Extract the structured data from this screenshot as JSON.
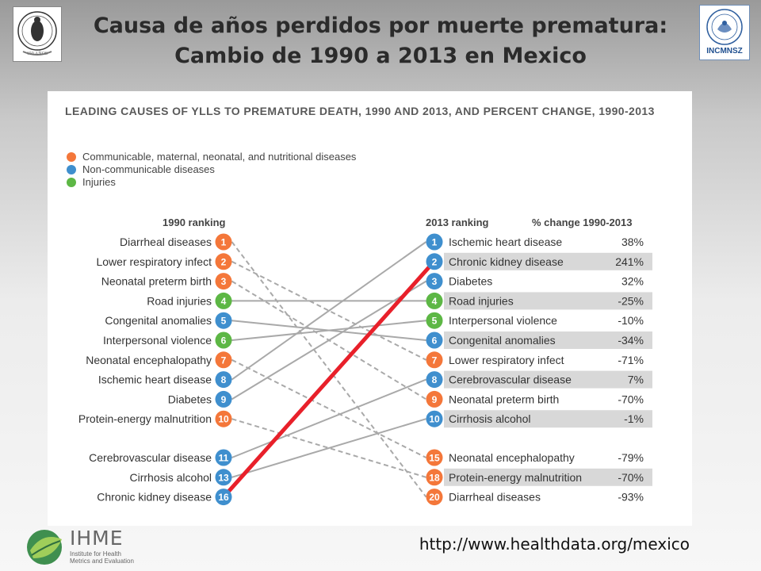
{
  "slide": {
    "title_line1": "Causa de años perdidos por muerte prematura:",
    "title_line2": "Cambio de 1990 a 2013 en Mexico",
    "url": "http://www.healthdata.org/mexico",
    "left_logo_text": "150 AÑOS",
    "right_logo_text": "INCMNSZ",
    "ihme_name": "IHME",
    "ihme_subtitle": "Institute for Health Metrics and Evaluation"
  },
  "chart": {
    "title": "LEADING CAUSES OF YLLS TO PREMATURE DEATH, 1990 AND 2013, AND PERCENT CHANGE, 1990-2013",
    "legend": [
      {
        "label": "Communicable, maternal, neonatal, and nutritional diseases",
        "color": "#f4773a"
      },
      {
        "label": "Non-communicable diseases",
        "color": "#3f8fce"
      },
      {
        "label": "Injuries",
        "color": "#5db745"
      }
    ],
    "header_1990": "1990 ranking",
    "header_2013": "2013 ranking",
    "header_change": "% change 1990-2013",
    "highlight_color": "#e8202a"
  },
  "chart_data": {
    "type": "slope",
    "ranking_1990": [
      {
        "rank": "1",
        "cause": "Diarrheal diseases",
        "group": "communicable",
        "rank_2013": "20"
      },
      {
        "rank": "2",
        "cause": "Lower respiratory infect",
        "group": "communicable",
        "rank_2013": "7"
      },
      {
        "rank": "3",
        "cause": "Neonatal preterm birth",
        "group": "communicable",
        "rank_2013": "9"
      },
      {
        "rank": "4",
        "cause": "Road injuries",
        "group": "injuries",
        "rank_2013": "4"
      },
      {
        "rank": "5",
        "cause": "Congenital anomalies",
        "group": "ncd",
        "rank_2013": "6"
      },
      {
        "rank": "6",
        "cause": "Interpersonal violence",
        "group": "injuries",
        "rank_2013": "5"
      },
      {
        "rank": "7",
        "cause": "Neonatal encephalopathy",
        "group": "communicable",
        "rank_2013": "15"
      },
      {
        "rank": "8",
        "cause": "Ischemic heart disease",
        "group": "ncd",
        "rank_2013": "1"
      },
      {
        "rank": "9",
        "cause": "Diabetes",
        "group": "ncd",
        "rank_2013": "3"
      },
      {
        "rank": "10",
        "cause": "Protein-energy malnutrition",
        "group": "communicable",
        "rank_2013": "18"
      },
      {
        "rank": "11",
        "cause": "Cerebrovascular disease",
        "group": "ncd",
        "rank_2013": "8"
      },
      {
        "rank": "13",
        "cause": "Cirrhosis alcohol",
        "group": "ncd",
        "rank_2013": "10"
      },
      {
        "rank": "16",
        "cause": "Chronic kidney disease",
        "group": "ncd",
        "rank_2013": "2",
        "highlight": true
      }
    ],
    "ranking_2013": [
      {
        "rank": "1",
        "cause": "Ischemic heart disease",
        "group": "ncd",
        "change": "38%",
        "change_value": 38
      },
      {
        "rank": "2",
        "cause": "Chronic kidney disease",
        "group": "ncd",
        "change": "241%",
        "change_value": 241
      },
      {
        "rank": "3",
        "cause": "Diabetes",
        "group": "ncd",
        "change": "32%",
        "change_value": 32
      },
      {
        "rank": "4",
        "cause": "Road injuries",
        "group": "injuries",
        "change": "-25%",
        "change_value": -25
      },
      {
        "rank": "5",
        "cause": "Interpersonal violence",
        "group": "injuries",
        "change": "-10%",
        "change_value": -10
      },
      {
        "rank": "6",
        "cause": "Congenital anomalies",
        "group": "ncd",
        "change": "-34%",
        "change_value": -34
      },
      {
        "rank": "7",
        "cause": "Lower respiratory infect",
        "group": "communicable",
        "change": "-71%",
        "change_value": -71
      },
      {
        "rank": "8",
        "cause": "Cerebrovascular disease",
        "group": "ncd",
        "change": "7%",
        "change_value": 7
      },
      {
        "rank": "9",
        "cause": "Neonatal preterm birth",
        "group": "communicable",
        "change": "-70%",
        "change_value": -70
      },
      {
        "rank": "10",
        "cause": "Cirrhosis alcohol",
        "group": "ncd",
        "change": "-1%",
        "change_value": -1
      },
      {
        "rank": "15",
        "cause": "Neonatal encephalopathy",
        "group": "communicable",
        "change": "-79%",
        "change_value": -79
      },
      {
        "rank": "18",
        "cause": "Protein-energy malnutrition",
        "group": "communicable",
        "change": "-70%",
        "change_value": -70
      },
      {
        "rank": "20",
        "cause": "Diarrheal diseases",
        "group": "communicable",
        "change": "-93%",
        "change_value": -93
      }
    ]
  }
}
